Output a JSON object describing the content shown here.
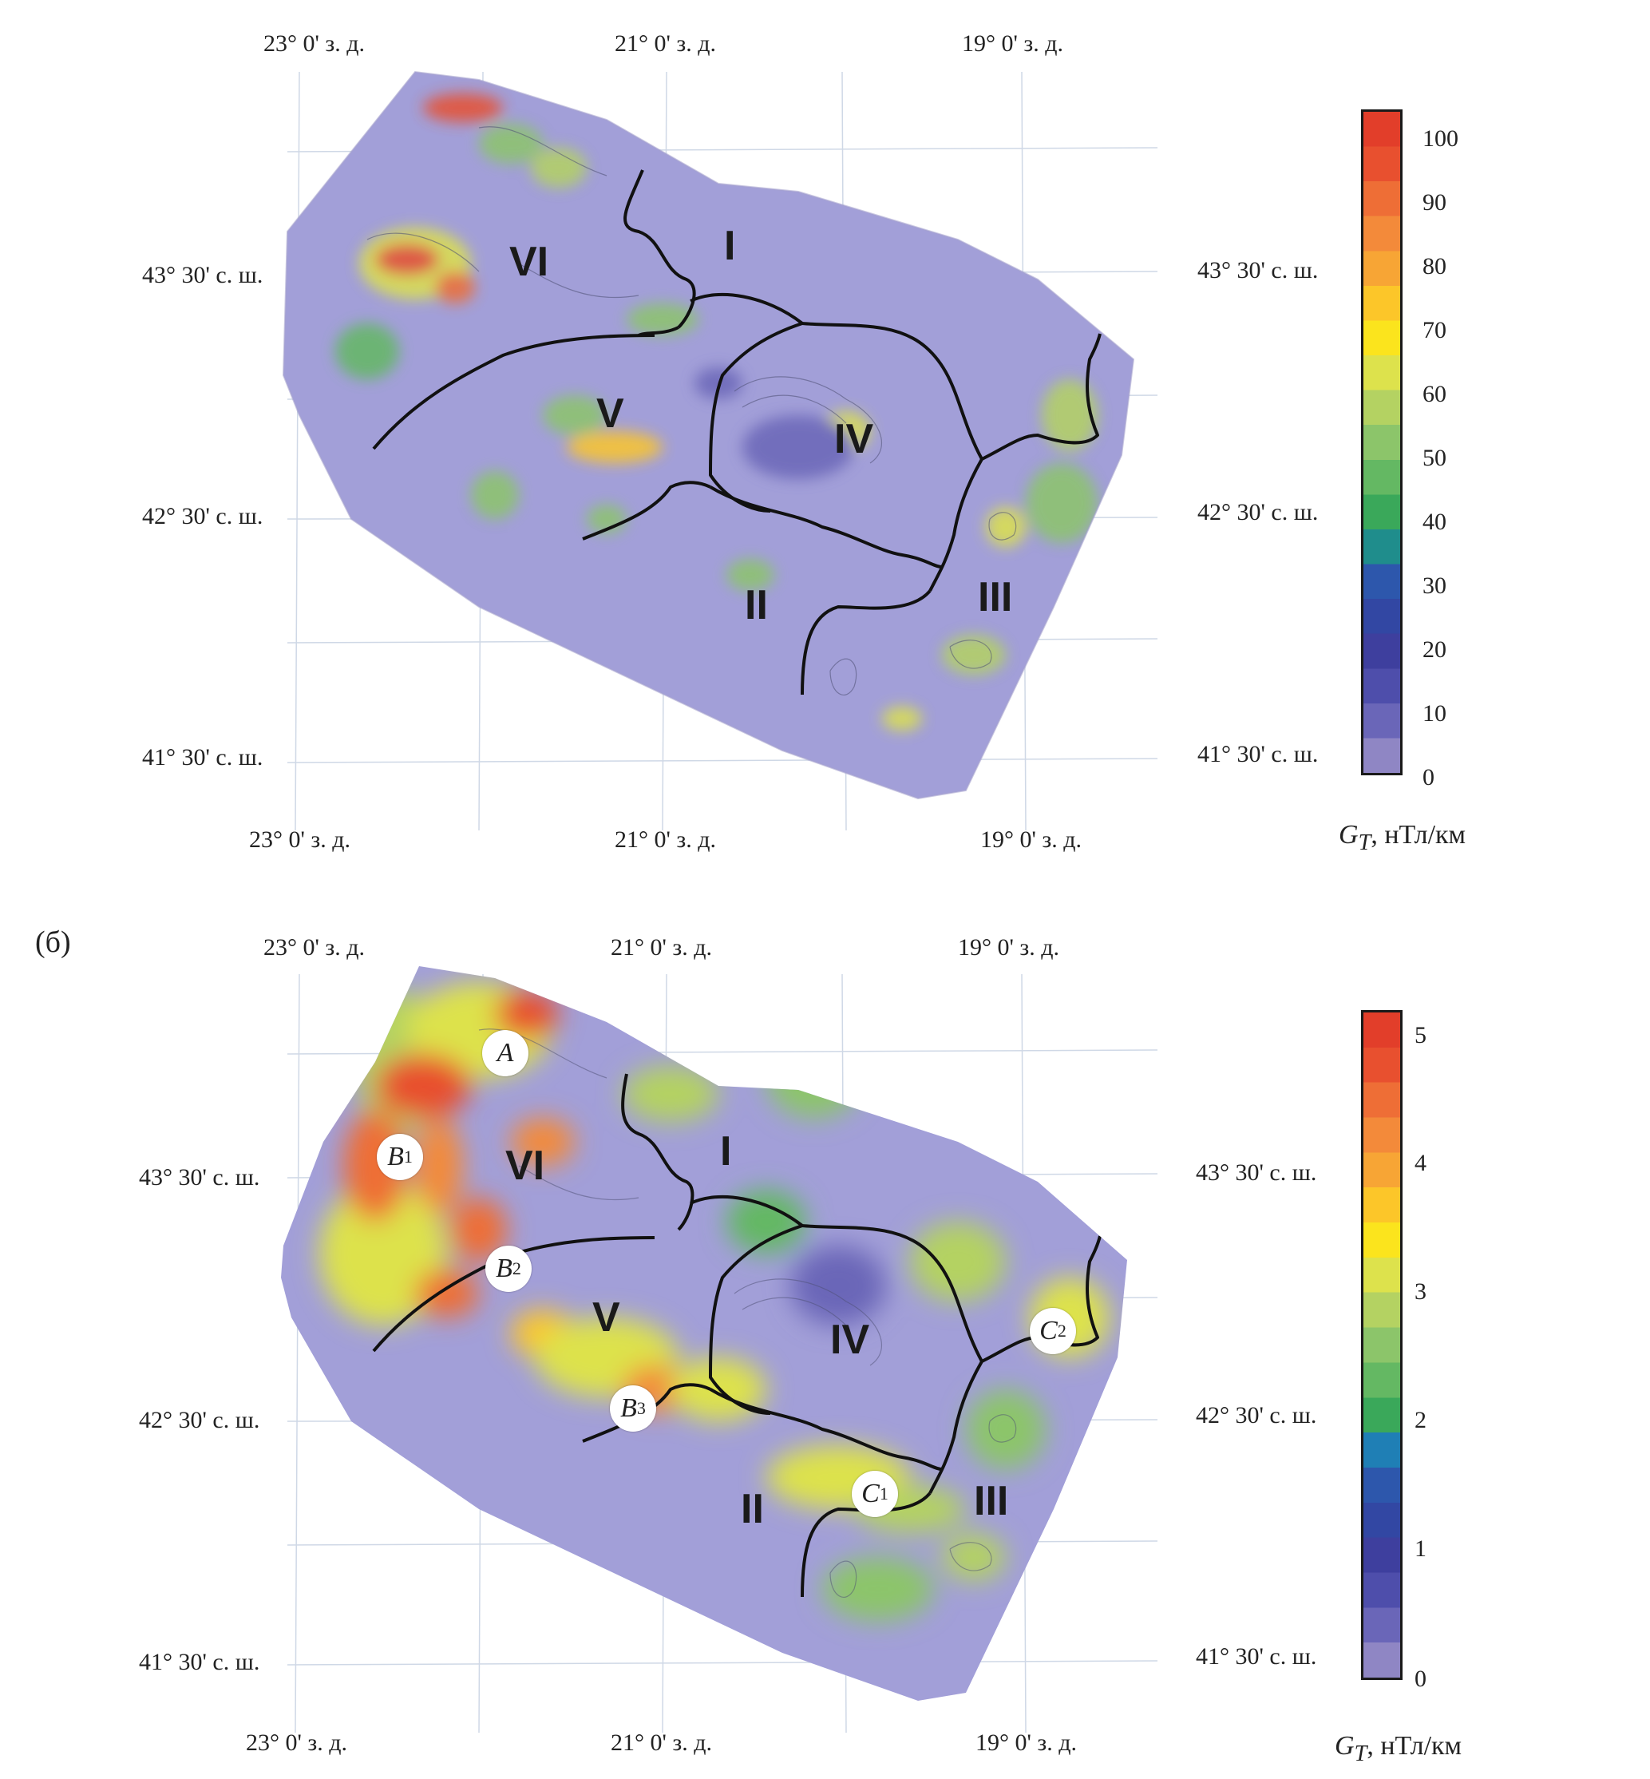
{
  "panel_a": {
    "label": "",
    "top_lon_labels": [
      "23° 0' з. д.",
      "21° 0' з. д.",
      "19° 0' з. д."
    ],
    "bottom_lon_labels": [
      "23° 0' з. д.",
      "21° 0' з. д.",
      "19° 0' з. д."
    ],
    "left_lat_labels": [
      "43° 30' с. ш.",
      "42° 30' с. ш.",
      "41° 30' с. ш."
    ],
    "right_lat_labels": [
      "43° 30' с. ш.",
      "42° 30' с. ш.",
      "41° 30' с. ш."
    ],
    "regions": [
      "I",
      "II",
      "III",
      "IV",
      "V",
      "VI"
    ],
    "colorbar": {
      "ticks": [
        "100",
        "90",
        "80",
        "70",
        "60",
        "50",
        "40",
        "30",
        "20",
        "10",
        "0"
      ],
      "title_symbol": "G",
      "title_sub": "T",
      "title_unit": ", нТл/км",
      "min": 0,
      "max": 105,
      "colors": [
        "#8f86c4",
        "#6a66b8",
        "#4e4eab",
        "#3e3f9e",
        "#3247a3",
        "#2d57ac",
        "#1f8d8c",
        "#3aa85a",
        "#64b863",
        "#8cc56a",
        "#b4d262",
        "#dde24c",
        "#fbe41d",
        "#fcc629",
        "#f7a535",
        "#f38a3a",
        "#ee6e36",
        "#e8502f",
        "#e23e2a"
      ]
    }
  },
  "panel_b": {
    "label": "(б)",
    "top_lon_labels": [
      "23° 0' з. д.",
      "21° 0' з. д.",
      "19° 0' з. д."
    ],
    "bottom_lon_labels": [
      "23° 0' з. д.",
      "21° 0' з. д.",
      "19° 0' з. д."
    ],
    "left_lat_labels": [
      "43° 30' с. ш.",
      "42° 30' с. ш.",
      "41° 30' с. ш."
    ],
    "right_lat_labels": [
      "43° 30' с. ш.",
      "42° 30' с. ш.",
      "41° 30' с. ш."
    ],
    "regions": [
      "I",
      "II",
      "III",
      "IV",
      "V",
      "VI"
    ],
    "markers": [
      {
        "letter": "A",
        "sub": ""
      },
      {
        "letter": "B",
        "sub": "1"
      },
      {
        "letter": "B",
        "sub": "2"
      },
      {
        "letter": "B",
        "sub": "3"
      },
      {
        "letter": "C",
        "sub": "1"
      },
      {
        "letter": "C",
        "sub": "2"
      }
    ],
    "colorbar": {
      "ticks": [
        "5",
        "4",
        "3",
        "2",
        "1",
        "0"
      ],
      "title_symbol": "G",
      "title_sub": "T",
      "title_unit": ", нТл/км",
      "min": 0,
      "max": 5.2,
      "colors": [
        "#8f86c4",
        "#6a66b8",
        "#4e4eab",
        "#3e3f9e",
        "#3247a3",
        "#2d57ac",
        "#1f7fb5",
        "#3aa85a",
        "#64b863",
        "#8cc56a",
        "#b4d262",
        "#dde24c",
        "#fbe41d",
        "#fcc629",
        "#f7a535",
        "#f38a3a",
        "#ee6e36",
        "#e8502f",
        "#e23e2a"
      ]
    }
  }
}
